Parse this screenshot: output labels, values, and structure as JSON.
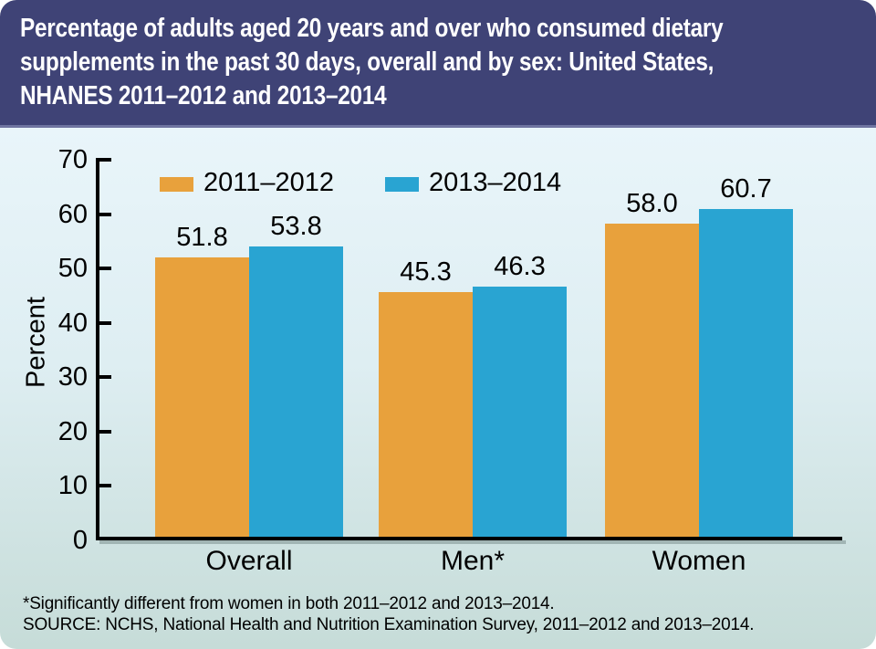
{
  "header": {
    "title_lines": [
      "Percentage of adults aged 20 years and over who consumed dietary",
      "supplements in the past 30 days, overall and by sex: United States,",
      "NHANES 2011–2012 and 2013–2014"
    ]
  },
  "chart_data": {
    "type": "bar",
    "title": "Percentage of adults aged 20 years and over who consumed dietary supplements in the past 30 days, overall and by sex: United States, NHANES 2011–2012 and 2013–2014",
    "categories": [
      "Overall",
      "Men*",
      "Women"
    ],
    "series": [
      {
        "name": "2011–2012",
        "color": "#E8A13C",
        "values": [
          51.8,
          45.3,
          58.0
        ],
        "labels": [
          "51.8",
          "45.3",
          "58.0"
        ]
      },
      {
        "name": "2013–2014",
        "color": "#29A4D2",
        "values": [
          53.8,
          46.3,
          60.7
        ],
        "labels": [
          "53.8",
          "46.3",
          "60.7"
        ]
      }
    ],
    "xlabel": "",
    "ylabel": "Percent",
    "ylim": [
      0,
      70
    ],
    "yticks": [
      0,
      10,
      20,
      30,
      40,
      50,
      60,
      70
    ],
    "grid": false,
    "legend_position": "top-left inside plot"
  },
  "footnotes": {
    "significance": "*Significantly different from women in both 2011–2012 and 2013–2014.",
    "source": "SOURCE: NCHS, National Health and Nutrition Examination Survey, 2011–2012 and 2013–2014."
  },
  "colors": {
    "header_background": "#3F4376",
    "header_text": "#FFFFFF",
    "series_2011_2012": "#E8A13C",
    "series_2013_2014": "#29A4D2",
    "plot_background_top": "#E8F4F9",
    "plot_background_bottom": "#C6DCD8",
    "axis": "#000000"
  }
}
